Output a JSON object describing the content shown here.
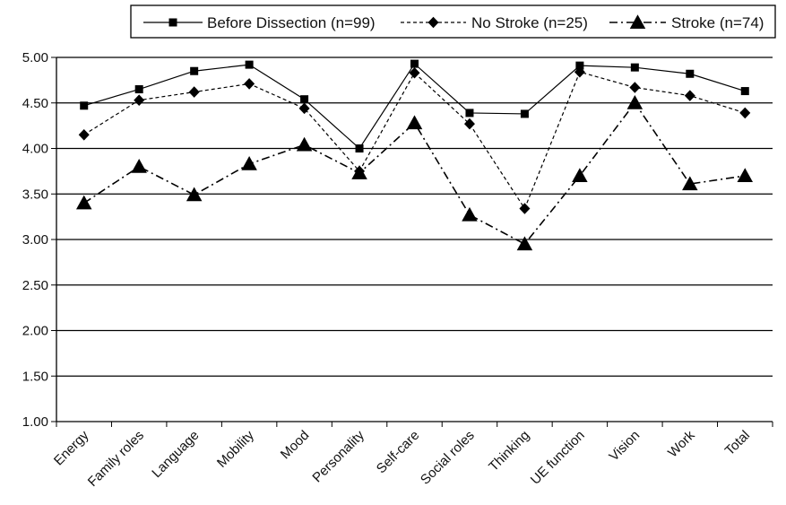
{
  "chart_data": {
    "type": "line",
    "categories": [
      "Energy",
      "Family roles",
      "Language",
      "Mobility",
      "Mood",
      "Personality",
      "Self-care",
      "Social roles",
      "Thinking",
      "UE function",
      "Vision",
      "Work",
      "Total"
    ],
    "series": [
      {
        "name": "Before Dissection (n=99)",
        "marker": "square",
        "line_style": "solid",
        "values": [
          4.47,
          4.65,
          4.85,
          4.92,
          4.54,
          4.0,
          4.93,
          4.39,
          4.38,
          4.91,
          4.89,
          4.82,
          4.63
        ]
      },
      {
        "name": "No Stroke (n=25)",
        "marker": "diamond",
        "line_style": "dashed",
        "values": [
          4.15,
          4.53,
          4.62,
          4.71,
          4.44,
          3.75,
          4.83,
          4.27,
          3.34,
          4.84,
          4.67,
          4.58,
          4.39
        ]
      },
      {
        "name": "Stroke (n=74)",
        "marker": "triangle",
        "line_style": "dash-dot",
        "values": [
          3.4,
          3.8,
          3.49,
          3.83,
          4.04,
          3.73,
          4.28,
          3.27,
          2.95,
          3.7,
          4.5,
          3.61,
          3.7
        ]
      }
    ],
    "ylim": [
      1.0,
      5.0
    ],
    "yticks": [
      "1.00",
      "1.50",
      "2.00",
      "2.50",
      "3.00",
      "3.50",
      "4.00",
      "4.50",
      "5.00"
    ],
    "xlabel": "",
    "ylabel": "",
    "grid": "horizontal",
    "legend_position": "top"
  }
}
